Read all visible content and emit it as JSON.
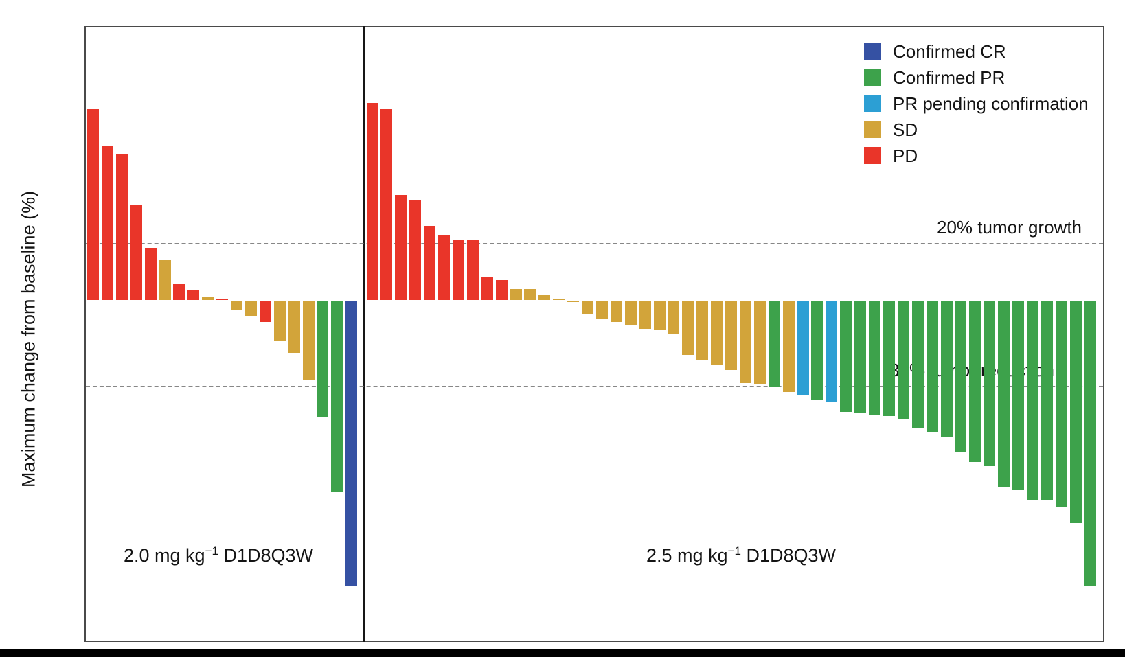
{
  "figure": {
    "bottom_strip_color": "#000000",
    "background_color": "#ffffff"
  },
  "chart_data": {
    "type": "bar",
    "subtype": "waterfall-tumor-response",
    "title": "",
    "xlabel": "",
    "ylabel": "Maximum change from baseline (%)",
    "yticks": [
      80,
      60,
      40,
      20,
      0,
      -20,
      -40,
      -60,
      -80,
      -100
    ],
    "ylim": [
      -119.5,
      96
    ],
    "grid": false,
    "legend_position": "top-right-inside",
    "category_colors": {
      "CR": "#3551a3",
      "PR": "#3da24b",
      "PRpending": "#2c9fd4",
      "SD": "#d2a43a",
      "PD": "#e93529"
    },
    "legend": [
      {
        "label": "Confirmed CR",
        "category": "CR",
        "color": "#3551a3"
      },
      {
        "label": "Confirmed PR",
        "category": "PR",
        "color": "#3da24b"
      },
      {
        "label": "PR pending confirmation",
        "category": "PRpending",
        "color": "#2c9fd4"
      },
      {
        "label": "SD",
        "category": "SD",
        "color": "#d2a43a"
      },
      {
        "label": "PD",
        "category": "PD",
        "color": "#e93529"
      }
    ],
    "reference_lines": [
      {
        "y": 20,
        "label": "20% tumor growth"
      },
      {
        "y": -30,
        "label": "30% tumor reduction"
      }
    ],
    "panels": [
      {
        "caption": "2.0 mg kg−1 D1D8Q3W",
        "caption_pre": "2.0 mg kg",
        "caption_sup": "−1",
        "caption_post": " D1D8Q3W",
        "values": [
          67,
          54,
          51,
          33.5,
          18.5,
          14,
          6,
          3.5,
          1,
          0.5,
          -3.5,
          -5.5,
          -7.5,
          -14,
          -18.5,
          -28,
          -41,
          -67,
          -100
        ],
        "categories": [
          "PD",
          "PD",
          "PD",
          "PD",
          "PD",
          "SD",
          "PD",
          "PD",
          "SD",
          "PD",
          "SD",
          "SD",
          "PD",
          "SD",
          "SD",
          "SD",
          "PR",
          "PR",
          "CR"
        ]
      },
      {
        "caption": "2.5 mg kg−1 D1D8Q3W",
        "caption_pre": "2.5 mg kg",
        "caption_sup": "−1",
        "caption_post": " D1D8Q3W",
        "values": [
          69,
          67,
          37,
          35,
          26,
          23,
          21,
          21,
          8,
          7,
          4,
          4,
          2,
          0.5,
          -0.5,
          -5,
          -6.5,
          -7.5,
          -8.5,
          -10,
          -10.5,
          -12,
          -19,
          -21,
          -22.5,
          -24.5,
          -29,
          -29.5,
          -30.5,
          -32,
          -33,
          -35,
          -35.5,
          -39,
          -39.5,
          -40,
          -40.5,
          -41.5,
          -44.5,
          -46,
          -48,
          -53,
          -56.5,
          -58,
          -65.5,
          -66.5,
          -70,
          -70,
          -72.5,
          -78,
          -100
        ],
        "categories": [
          "PD",
          "PD",
          "PD",
          "PD",
          "PD",
          "PD",
          "PD",
          "PD",
          "PD",
          "PD",
          "SD",
          "SD",
          "SD",
          "SD",
          "SD",
          "SD",
          "SD",
          "SD",
          "SD",
          "SD",
          "SD",
          "SD",
          "SD",
          "SD",
          "SD",
          "SD",
          "SD",
          "SD",
          "PR",
          "SD",
          "PRpending",
          "PR",
          "PRpending",
          "PR",
          "PR",
          "PR",
          "PR",
          "PR",
          "PR",
          "PR",
          "PR",
          "PR",
          "PR",
          "PR",
          "PR",
          "PR",
          "PR",
          "PR",
          "PR",
          "PR",
          "PR"
        ]
      }
    ]
  }
}
